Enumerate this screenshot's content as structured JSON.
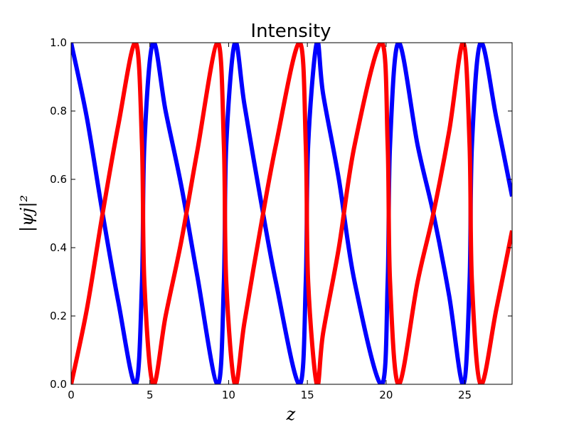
{
  "chart_data": {
    "type": "line",
    "title": "Intensity",
    "xlabel": "z",
    "ylabel": "|ψj|²",
    "xlim": [
      0,
      28
    ],
    "ylim": [
      0.0,
      1.0
    ],
    "x_ticks": [
      "0",
      "5",
      "10",
      "15",
      "20",
      "25"
    ],
    "x_tick_values": [
      0,
      5,
      10,
      15,
      20,
      25
    ],
    "y_ticks": [
      "0.0",
      "0.2",
      "0.4",
      "0.6",
      "0.8",
      "1.0"
    ],
    "y_tick_values": [
      0.0,
      0.2,
      0.4,
      0.6,
      0.8,
      1.0
    ],
    "grid": false,
    "series": [
      {
        "color": "#0000ff",
        "x": [
          0,
          1,
          2,
          3,
          4.1,
          4.5,
          4.65,
          5.2,
          6,
          7,
          8,
          9.3,
          9.7,
          9.85,
          10.4,
          11,
          12,
          13,
          14.5,
          14.9,
          15.05,
          15.6,
          16,
          17,
          18,
          19.7,
          20.1,
          20.25,
          20.8,
          22,
          23,
          24,
          24.9,
          25.3,
          25.45,
          26.0,
          27,
          28
        ],
        "y": [
          1.0,
          0.78,
          0.5,
          0.24,
          0.0,
          0.3,
          0.7,
          1.0,
          0.8,
          0.58,
          0.32,
          0.0,
          0.3,
          0.7,
          1.0,
          0.82,
          0.55,
          0.3,
          0.0,
          0.3,
          0.7,
          1.0,
          0.85,
          0.6,
          0.3,
          0.0,
          0.3,
          0.7,
          1.0,
          0.7,
          0.5,
          0.26,
          0.0,
          0.3,
          0.7,
          1.0,
          0.78,
          0.55
        ]
      },
      {
        "color": "#ff0000",
        "x": [
          0,
          1,
          2,
          3,
          4.1,
          4.5,
          4.65,
          5.2,
          6,
          7,
          8,
          9.3,
          9.7,
          9.85,
          10.4,
          11,
          12,
          13,
          14.5,
          14.9,
          15.05,
          15.6,
          16,
          17,
          18,
          19.7,
          20.1,
          20.25,
          20.8,
          22,
          23,
          24,
          24.9,
          25.3,
          25.45,
          26.0,
          27,
          28
        ],
        "y": [
          0.0,
          0.22,
          0.5,
          0.76,
          1.0,
          0.7,
          0.3,
          0.0,
          0.2,
          0.42,
          0.68,
          1.0,
          0.7,
          0.3,
          0.0,
          0.18,
          0.45,
          0.7,
          1.0,
          0.7,
          0.3,
          0.0,
          0.15,
          0.4,
          0.7,
          1.0,
          0.7,
          0.3,
          0.0,
          0.3,
          0.5,
          0.74,
          1.0,
          0.7,
          0.3,
          0.0,
          0.22,
          0.45
        ]
      }
    ]
  }
}
